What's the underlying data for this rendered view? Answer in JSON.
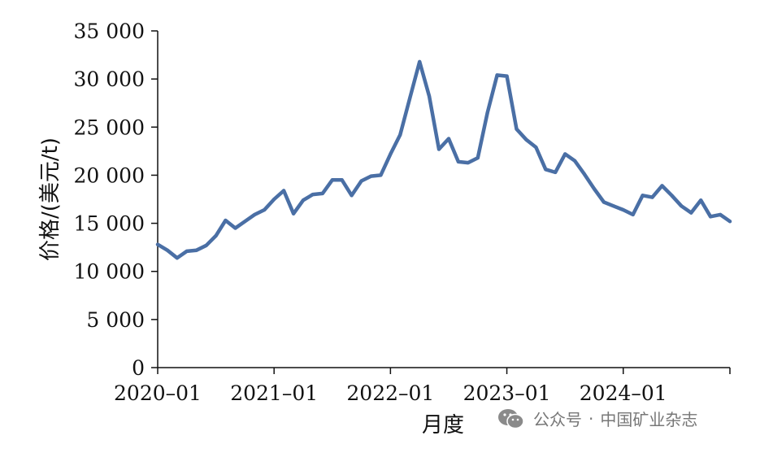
{
  "chart_data": {
    "type": "line",
    "title": "",
    "xlabel": "月度",
    "ylabel": "价格/(美元/t)",
    "ylim": [
      0,
      35000
    ],
    "yticks": [
      0,
      5000,
      10000,
      15000,
      20000,
      25000,
      30000,
      35000
    ],
    "ytick_labels": [
      "0",
      "5 000",
      "10 000",
      "15 000",
      "20 000",
      "25 000",
      "30 000",
      "35 000"
    ],
    "xticks": [
      "2020-01",
      "2021-01",
      "2022-01",
      "2023-01",
      "2024-01"
    ],
    "x_start": "2020-01",
    "x_end": "2024-12",
    "grid": false,
    "legend": "none",
    "line_color": "#4a6fa5",
    "series": [
      {
        "x": [
          "2020-01",
          "2020-02",
          "2020-03",
          "2020-04",
          "2020-05",
          "2020-06",
          "2020-07",
          "2020-08",
          "2020-09",
          "2020-10",
          "2020-11",
          "2020-12",
          "2021-01",
          "2021-02",
          "2021-03",
          "2021-04",
          "2021-05",
          "2021-06",
          "2021-07",
          "2021-08",
          "2021-09",
          "2021-10",
          "2021-11",
          "2021-12",
          "2022-01",
          "2022-02",
          "2022-03",
          "2022-04",
          "2022-05",
          "2022-06",
          "2022-07",
          "2022-08",
          "2022-09",
          "2022-10",
          "2022-11",
          "2022-12",
          "2023-01",
          "2023-02",
          "2023-03",
          "2023-04",
          "2023-05",
          "2023-06",
          "2023-07",
          "2023-08",
          "2023-09",
          "2023-10",
          "2023-11",
          "2023-12",
          "2024-01",
          "2024-02",
          "2024-03",
          "2024-04",
          "2024-05",
          "2024-06",
          "2024-07",
          "2024-08",
          "2024-09",
          "2024-10",
          "2024-11",
          "2024-12"
        ],
        "values": [
          12800,
          12200,
          11400,
          12100,
          12200,
          12700,
          13700,
          15300,
          14500,
          15200,
          15900,
          16400,
          17500,
          18400,
          16000,
          17400,
          18000,
          18100,
          19500,
          19500,
          17900,
          19400,
          19900,
          20000,
          22200,
          24200,
          28000,
          31800,
          28200,
          22700,
          23800,
          21400,
          21300,
          21800,
          26500,
          30400,
          30300,
          24800,
          23700,
          22900,
          20600,
          20300,
          22200,
          21500,
          20100,
          18600,
          17200,
          16800,
          16400,
          15900,
          17900,
          17700,
          18900,
          17900,
          16800,
          16100,
          17400,
          15700,
          15900,
          15200
        ]
      }
    ]
  },
  "watermark": {
    "icon": "wechat-icon",
    "text_a": "公众号",
    "separator": "·",
    "text_b": "中国矿业杂志"
  }
}
